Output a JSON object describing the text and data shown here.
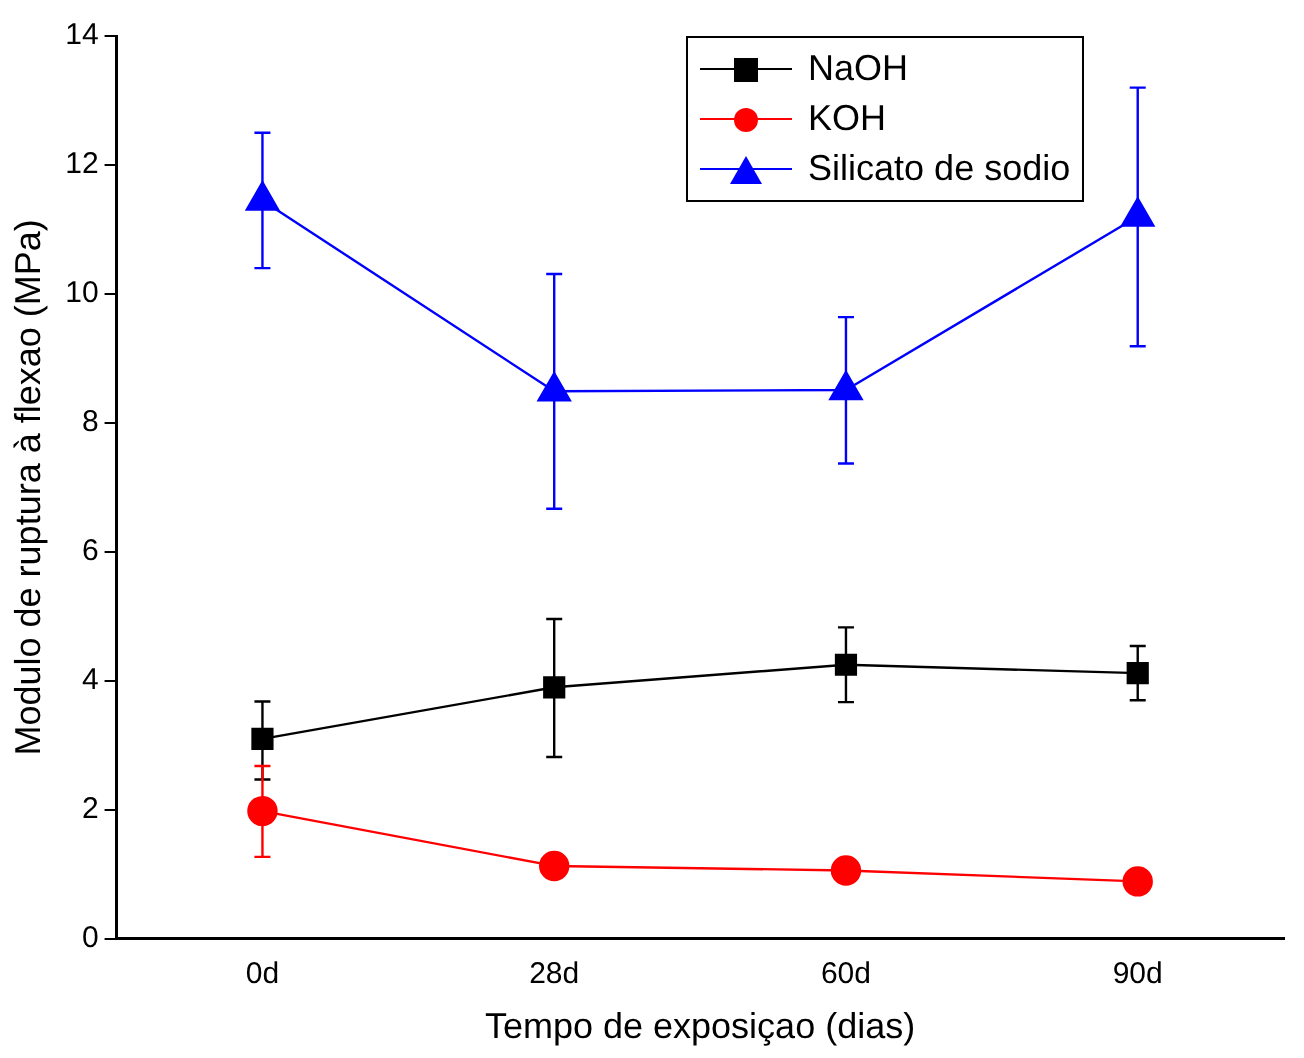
{
  "chart_data": {
    "type": "line",
    "xlabel": "Tempo de exposiçao (dias)",
    "ylabel": "Modulo de ruptura à flexao (MPa)",
    "categories": [
      "0d",
      "28d",
      "60d",
      "90d"
    ],
    "ylim": [
      0,
      14
    ],
    "yticks": [
      0,
      2,
      4,
      6,
      8,
      10,
      12,
      14
    ],
    "grid": false,
    "legend": "top",
    "line_style": "solid",
    "series": [
      {
        "name": "NaOH",
        "color": "#000000",
        "marker": "square",
        "values": [
          3.1,
          3.9,
          4.25,
          4.12
        ],
        "errors": [
          [
            2.47,
            3.68
          ],
          [
            2.82,
            4.96
          ],
          [
            3.67,
            4.83
          ],
          [
            3.7,
            4.54
          ]
        ]
      },
      {
        "name": "KOH",
        "color": "#ff0000",
        "marker": "circle",
        "values": [
          1.98,
          1.13,
          1.06,
          0.89
        ],
        "errors": [
          [
            1.27,
            2.68
          ],
          null,
          null,
          null
        ]
      },
      {
        "name": "Silicato de sodio",
        "color": "#0000ff",
        "marker": "triangle",
        "values": [
          11.45,
          8.49,
          8.51,
          11.2
        ],
        "errors": [
          [
            10.4,
            12.5
          ],
          [
            6.67,
            10.31
          ],
          [
            7.37,
            9.64
          ],
          [
            9.19,
            13.2
          ]
        ]
      }
    ]
  }
}
